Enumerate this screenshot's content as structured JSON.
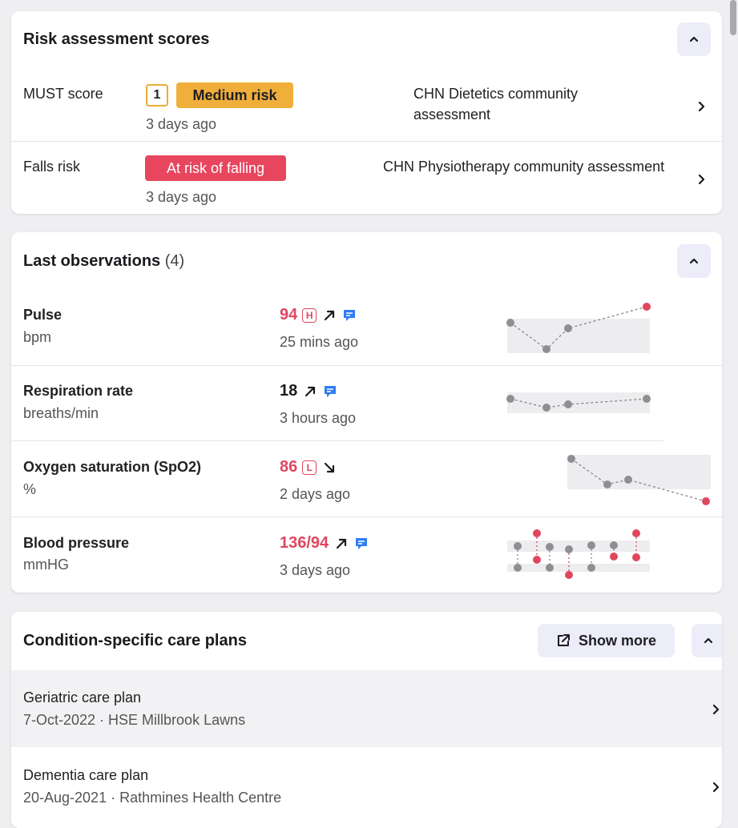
{
  "risk": {
    "title": "Risk assessment scores",
    "rows": [
      {
        "label": "MUST score",
        "score": "1",
        "badge": "Medium risk",
        "time": "3 days ago",
        "source_line1": "CHN Dietetics community",
        "source_line2": "assessment"
      },
      {
        "label": "Falls risk",
        "badge": "At risk of falling",
        "time": "3 days ago",
        "source": "CHN Physiotherapy community assessment"
      }
    ]
  },
  "observations": {
    "title": "Last observations",
    "count": "(4)",
    "rows": [
      {
        "name": "Pulse",
        "unit": "bpm",
        "value": "94",
        "flag": "H",
        "trend": "up",
        "has_comment": true,
        "time": "25 mins ago",
        "value_color": "#e0475f"
      },
      {
        "name": "Respiration rate",
        "unit": "breaths/min",
        "value": "18",
        "trend": "up",
        "has_comment": true,
        "time": "3 hours ago",
        "value_color": "#1a1a1f"
      },
      {
        "name": "Oxygen saturation (SpO2)",
        "unit": "%",
        "value": "86",
        "flag": "L",
        "trend": "down",
        "has_comment": false,
        "time": "2 days ago",
        "value_color": "#e0475f"
      },
      {
        "name": "Blood pressure",
        "unit": "mmHG",
        "value": "136/94",
        "trend": "up",
        "has_comment": true,
        "time": "3 days ago",
        "value_color": "#e0475f"
      }
    ]
  },
  "care_plans": {
    "title": "Condition-specific care plans",
    "show_more": "Show more",
    "items": [
      {
        "name": "Geriatric care plan",
        "meta": "7-Oct-2022 · HSE Millbrook Lawns"
      },
      {
        "name": "Dementia care plan",
        "meta": "20-Aug-2021 · Rathmines Health Centre"
      }
    ]
  },
  "colors": {
    "medium_risk": "#f0ae3a",
    "falls_risk": "#e8465e",
    "alert_red": "#e0475f",
    "comment_blue": "#2f7df6",
    "button_bg": "#ecedf8"
  }
}
